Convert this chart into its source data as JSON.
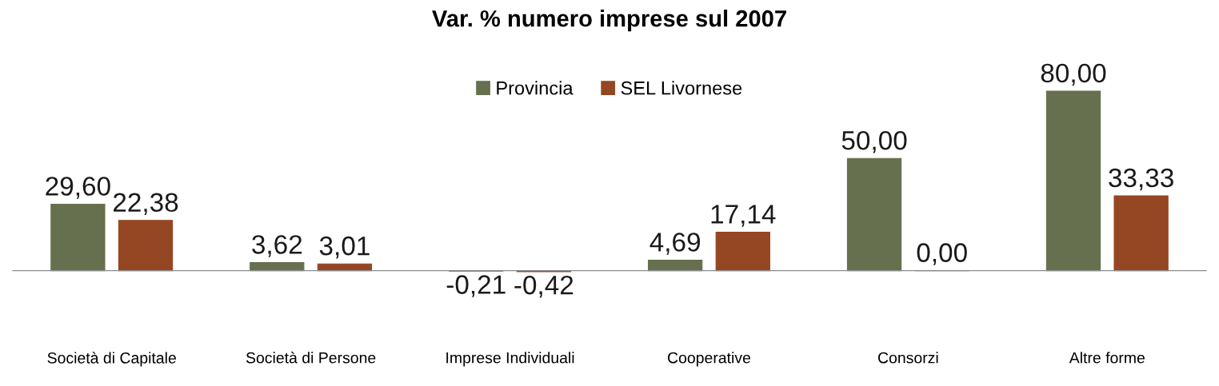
{
  "chart_data": {
    "type": "bar",
    "title": "Var. % numero imprese sul 2007",
    "categories": [
      "Società di Capitale",
      "Società di Persone",
      "Imprese Individuali",
      "Cooperative",
      "Consorzi",
      "Altre forme"
    ],
    "series": [
      {
        "name": "Provincia",
        "color": "#66704e",
        "values": [
          29.6,
          3.62,
          -0.21,
          4.69,
          50.0,
          80.0
        ],
        "value_labels": [
          "29,60",
          "3,62",
          "-0,21",
          "4,69",
          "50,00",
          "80,00"
        ]
      },
      {
        "name": "SEL Livornese",
        "color": "#954622",
        "values": [
          22.38,
          3.01,
          -0.42,
          17.14,
          0.0,
          33.33
        ],
        "value_labels": [
          "22,38",
          "3,01",
          "-0,42",
          "17,14",
          "0,00",
          "33,33"
        ]
      }
    ],
    "legend": "top",
    "grid": false
  }
}
